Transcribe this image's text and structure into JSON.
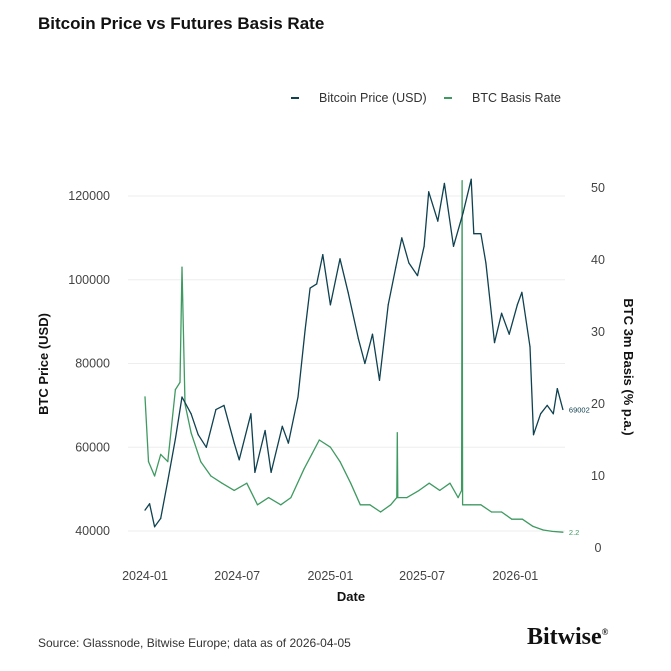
{
  "chart_data": {
    "type": "line",
    "title": "Bitcoin Price vs Futures Basis Rate",
    "xlabel": "Date",
    "ylabel_left": "BTC Price (USD)",
    "ylabel_right": "BTC 3m Basis (% p.a.)",
    "x_ticks": [
      "2024-01",
      "2024-07",
      "2025-01",
      "2025-07",
      "2026-01"
    ],
    "y_left_ticks": [
      40000,
      60000,
      80000,
      100000,
      120000
    ],
    "y_right_ticks": [
      0,
      10,
      20,
      30,
      40,
      50
    ],
    "y_left_range": [
      36000,
      126000
    ],
    "y_right_range": [
      -1,
      52
    ],
    "grid": "horizontal",
    "legend_position": "top-right",
    "colors": {
      "price": "#0f4150",
      "basis": "#3f9a62"
    },
    "series": [
      {
        "name": "Bitcoin Price (USD)",
        "axis": "left",
        "end_label": "69002",
        "x": [
          "2024-01-01",
          "2024-01-10",
          "2024-01-20",
          "2024-02-01",
          "2024-02-15",
          "2024-03-01",
          "2024-03-14",
          "2024-04-01",
          "2024-04-15",
          "2024-05-01",
          "2024-05-20",
          "2024-06-05",
          "2024-06-25",
          "2024-07-05",
          "2024-07-28",
          "2024-08-05",
          "2024-08-25",
          "2024-09-06",
          "2024-09-28",
          "2024-10-10",
          "2024-10-29",
          "2024-11-12",
          "2024-11-22",
          "2024-12-05",
          "2024-12-17",
          "2025-01-01",
          "2025-01-20",
          "2025-02-05",
          "2025-02-25",
          "2025-03-10",
          "2025-03-25",
          "2025-04-08",
          "2025-04-25",
          "2025-05-10",
          "2025-05-22",
          "2025-06-05",
          "2025-06-22",
          "2025-07-05",
          "2025-07-14",
          "2025-08-01",
          "2025-08-14",
          "2025-09-01",
          "2025-09-20",
          "2025-10-06",
          "2025-10-11",
          "2025-10-25",
          "2025-11-04",
          "2025-11-21",
          "2025-12-05",
          "2025-12-20",
          "2026-01-05",
          "2026-01-14",
          "2026-01-30",
          "2026-02-06",
          "2026-02-20",
          "2026-03-05",
          "2026-03-17",
          "2026-03-25",
          "2026-04-05"
        ],
        "y": [
          45000,
          46500,
          41000,
          43000,
          52000,
          62000,
          72000,
          68000,
          63000,
          60000,
          69000,
          70000,
          61000,
          57000,
          68000,
          54000,
          64000,
          54000,
          65000,
          61000,
          72000,
          88000,
          98000,
          99000,
          106000,
          94000,
          105000,
          97000,
          86000,
          80000,
          87000,
          76000,
          94000,
          103000,
          110000,
          104000,
          101000,
          108000,
          121000,
          114000,
          123000,
          108000,
          116000,
          124000,
          111000,
          111000,
          104000,
          85000,
          92000,
          87000,
          94000,
          97000,
          84000,
          63000,
          68000,
          70000,
          68000,
          74000,
          69002
        ]
      },
      {
        "name": "BTC Basis Rate",
        "axis": "right",
        "end_label": "2.2",
        "x": [
          "2024-01-01",
          "2024-01-08",
          "2024-01-20",
          "2024-02-01",
          "2024-02-15",
          "2024-03-01",
          "2024-03-10",
          "2024-03-14",
          "2024-03-20",
          "2024-04-01",
          "2024-04-20",
          "2024-05-10",
          "2024-06-01",
          "2024-06-25",
          "2024-07-20",
          "2024-08-10",
          "2024-09-01",
          "2024-09-25",
          "2024-10-15",
          "2024-11-10",
          "2024-11-25",
          "2024-12-10",
          "2025-01-01",
          "2025-01-20",
          "2025-02-10",
          "2025-03-01",
          "2025-03-20",
          "2025-04-10",
          "2025-04-30",
          "2025-05-12",
          "2025-05-13",
          "2025-05-14",
          "2025-06-01",
          "2025-06-25",
          "2025-07-15",
          "2025-08-05",
          "2025-08-25",
          "2025-09-10",
          "2025-09-17",
          "2025-09-18",
          "2025-09-19",
          "2025-10-05",
          "2025-10-25",
          "2025-11-15",
          "2025-12-05",
          "2025-12-25",
          "2026-01-15",
          "2026-02-05",
          "2026-02-25",
          "2026-03-15",
          "2026-04-05"
        ],
        "y": [
          21,
          12,
          10,
          13,
          12,
          22,
          23,
          39,
          20,
          16,
          12,
          10,
          9,
          8,
          9,
          6,
          7,
          6,
          7,
          11,
          13,
          15,
          14,
          12,
          9,
          6,
          6,
          5,
          6,
          7,
          16,
          7,
          7,
          8,
          9,
          8,
          9,
          7,
          8,
          51,
          6,
          6,
          6,
          5,
          5,
          4,
          4,
          3,
          2.5,
          2.3,
          2.2
        ]
      }
    ]
  },
  "source": "Source: Glassnode, Bitwise Europe; data as of 2026-04-05",
  "logo": "Bitwise"
}
